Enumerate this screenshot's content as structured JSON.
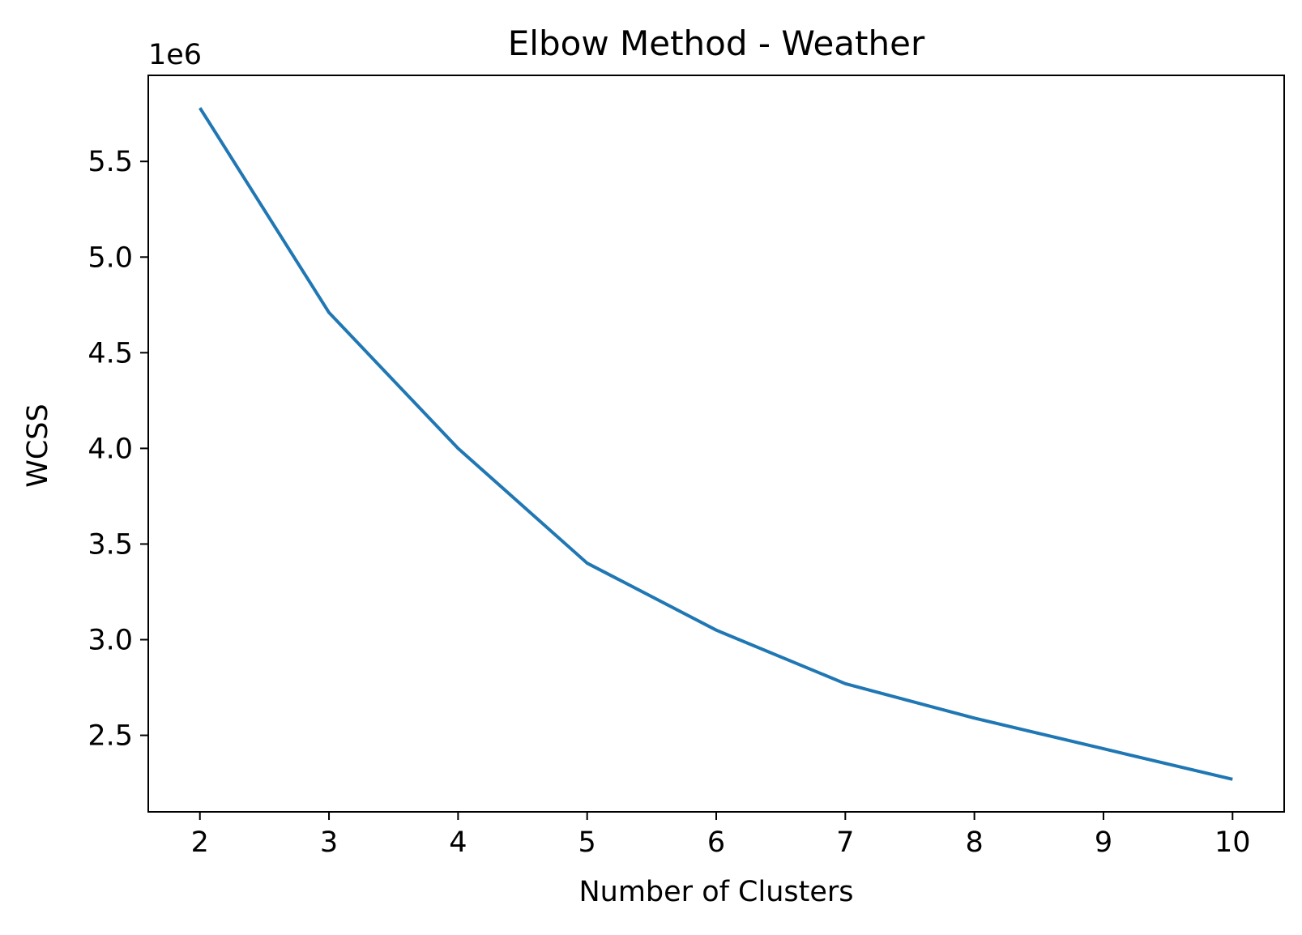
{
  "chart_data": {
    "type": "line",
    "title": "Elbow Method - Weather",
    "xlabel": "Number of Clusters",
    "ylabel": "WCSS",
    "y_offset_label": "1e6",
    "x": [
      2,
      3,
      4,
      5,
      6,
      7,
      8,
      9,
      10
    ],
    "series": [
      {
        "values": [
          5780000,
          4710000,
          4000000,
          3400000,
          3050000,
          2770000,
          2590000,
          2430000,
          2270000
        ],
        "color": "#1f77b4"
      }
    ],
    "xlim": [
      1.6,
      10.4
    ],
    "ylim": [
      2.1,
      5.95
    ],
    "x_ticks": [
      2,
      3,
      4,
      5,
      6,
      7,
      8,
      9,
      10
    ],
    "x_tick_labels": [
      "2",
      "3",
      "4",
      "5",
      "6",
      "7",
      "8",
      "9",
      "10"
    ],
    "y_ticks": [
      2.5,
      3.0,
      3.5,
      4.0,
      4.5,
      5.0,
      5.5
    ],
    "y_tick_labels": [
      "2.5",
      "3.0",
      "3.5",
      "4.0",
      "4.5",
      "5.0",
      "5.5"
    ],
    "grid": false,
    "legend": false
  }
}
